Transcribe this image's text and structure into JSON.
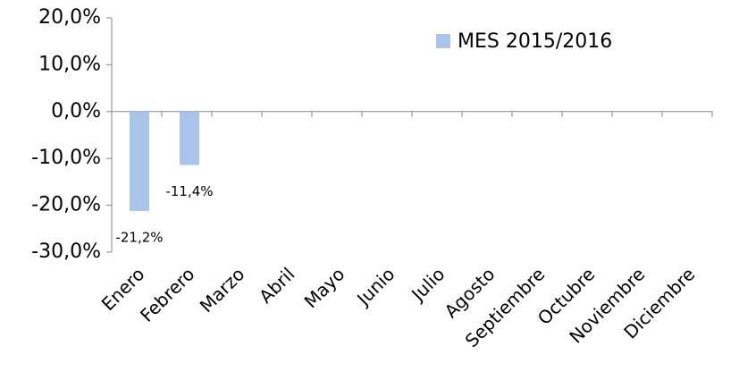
{
  "chart_data": {
    "type": "bar",
    "categories": [
      "Enero",
      "Febrero",
      "Marzo",
      "Abril",
      "Mayo",
      "Junio",
      "Julio",
      "Agosto",
      "Septiembre",
      "Octubre",
      "Noviembre",
      "Diciembre"
    ],
    "series": [
      {
        "name": "MES 2015/2016",
        "color": "#a9c4e8",
        "values": [
          -21.2,
          -11.4,
          null,
          null,
          null,
          null,
          null,
          null,
          null,
          null,
          null,
          null
        ],
        "value_labels": [
          "-21,2%",
          "-11,4%",
          null,
          null,
          null,
          null,
          null,
          null,
          null,
          null,
          null,
          null
        ]
      }
    ],
    "ylim": [
      -30,
      20
    ],
    "yticks": [
      {
        "value": -30,
        "label": "-30,0%"
      },
      {
        "value": -20,
        "label": "-20,0%"
      },
      {
        "value": -10,
        "label": "-10,0%"
      },
      {
        "value": 0,
        "label": "0,0%"
      },
      {
        "value": 10,
        "label": "10,0%"
      },
      {
        "value": 20,
        "label": "20,0%"
      }
    ],
    "legend": "top-right",
    "grid": false
  }
}
